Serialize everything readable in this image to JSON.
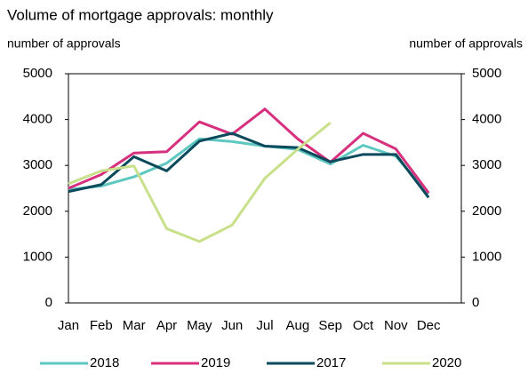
{
  "chart_data": {
    "type": "line",
    "title": "Volume of mortgage approvals: monthly",
    "y_label": "number of approvals",
    "y2_label": "number of approvals",
    "categories": [
      "Jan",
      "Feb",
      "Mar",
      "Apr",
      "May",
      "Jun",
      "Jul",
      "Aug",
      "Sep",
      "Oct",
      "Nov",
      "Dec"
    ],
    "series": [
      {
        "name": "2018",
        "color": "#5ec8c0",
        "values": [
          2470,
          2550,
          2750,
          3050,
          3580,
          3520,
          3420,
          3350,
          3030,
          3440,
          3200,
          2380
        ]
      },
      {
        "name": "2019",
        "color": "#d6307e",
        "values": [
          2500,
          2800,
          3270,
          3300,
          3950,
          3680,
          4230,
          3580,
          3070,
          3700,
          3360,
          2400
        ]
      },
      {
        "name": "2017",
        "color": "#0b4a5c",
        "values": [
          2430,
          2580,
          3190,
          2880,
          3530,
          3700,
          3420,
          3390,
          3080,
          3240,
          3240,
          2300
        ]
      },
      {
        "name": "2020",
        "color": "#c9e08a",
        "values": [
          2600,
          2880,
          2990,
          1620,
          1340,
          1700,
          2720,
          3350,
          3930,
          null,
          null,
          null
        ]
      }
    ],
    "ylim": [
      0,
      5000
    ],
    "yticks": [
      0,
      1000,
      2000,
      3000,
      4000,
      5000
    ],
    "y2lim": [
      0,
      5000
    ],
    "y2ticks": [
      0,
      1000,
      2000,
      3000,
      4000,
      5000
    ],
    "grid": false,
    "legend": "bottom"
  }
}
